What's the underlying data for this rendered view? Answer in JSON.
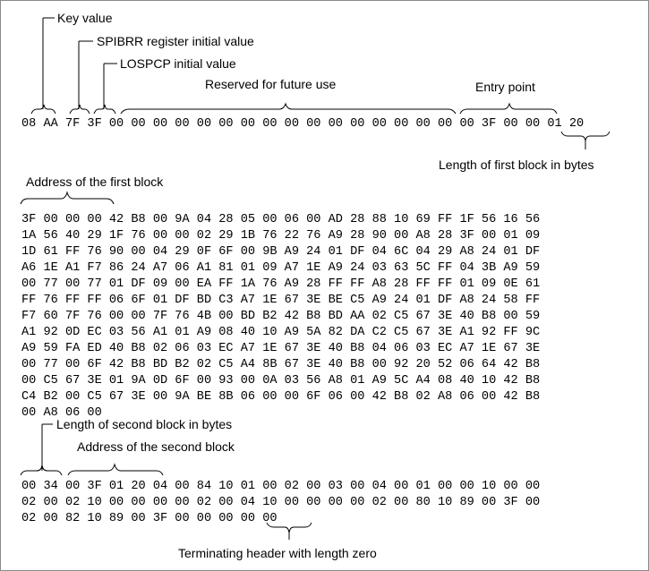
{
  "header_labels": {
    "key_value": "Key value",
    "spibrr": "SPIBRR register initial value",
    "lospcp": "LOSPCP initial value",
    "reserved": "Reserved for future use",
    "entry_point": "Entry point",
    "length_first_block": "Length of first block in bytes"
  },
  "header_row": "08 AA 7F 3F 00 00 00 00 00 00 00 00 00 00 00 00 00 00 00 00 00 3F 00 00 01 20",
  "first_block": {
    "address_label": "Address of the first block",
    "lines": [
      "3F 00 00 00 42 B8 00 9A 04 28 05 00 06 00 AD 28 88 10 69 FF 1F 56 16 56",
      "1A 56 40 29 1F 76 00 00 02 29 1B 76 22 76 A9 28 90 00 A8 28 3F 00 01 09",
      "1D 61 FF 76 90 00 04 29 0F 6F 00 9B A9 24 01 DF 04 6C 04 29 A8 24 01 DF",
      "A6 1E A1 F7 86 24 A7 06 A1 81 01 09 A7 1E A9 24 03 63 5C FF 04 3B A9 59",
      "00 77 00 77 01 DF 09 00 EA FF 1A 76 A9 28 FF FF A8 28 FF FF 01 09 0E 61",
      "FF 76 FF FF 06 6F 01 DF BD C3 A7 1E 67 3E BE C5 A9 24 01 DF A8 24 58 FF",
      "F7 60 7F 76 00 00 7F 76 4B 00 BD B2 42 B8 BD AA 02 C5 67 3E 40 B8 00 59",
      "A1 92 0D EC 03 56 A1 01 A9 08 40 10 A9 5A 82 DA C2 C5 67 3E A1 92 FF 9C",
      "A9 59 FA ED 40 B8 02 06 03 EC A7 1E 67 3E 40 B8 04 06 03 EC A7 1E 67 3E",
      "00 77 00 6F 42 B8 BD B2 02 C5 A4 8B 67 3E 40 B8 00 92 20 52 06 64 42 B8",
      "00 C5 67 3E 01 9A 0D 6F 00 93 00 0A 03 56 A8 01 A9 5C A4 08 40 10 42 B8",
      "C4 B2 00 C5 67 3E 00 9A BE 8B 06 00 00 6F 06 00 42 B8 02 A8 06 00 42 B8",
      "00 A8 06 00"
    ]
  },
  "second_block": {
    "length_label": "Length of second block in bytes",
    "address_label": "Address of the second block",
    "lines": [
      "00 34 00 3F 01 20 04 00 84 10 01 00 02 00 03 00 04 00 01 00 00 10 00 00",
      "02 00 02 10 00 00 00 00 02 00 04 10 00 00 00 00 02 00 80 10 89 00 3F 00",
      "02 00 82 10 89 00 3F 00 00 00 00 00"
    ]
  },
  "terminating_label": "Terminating header with length zero"
}
